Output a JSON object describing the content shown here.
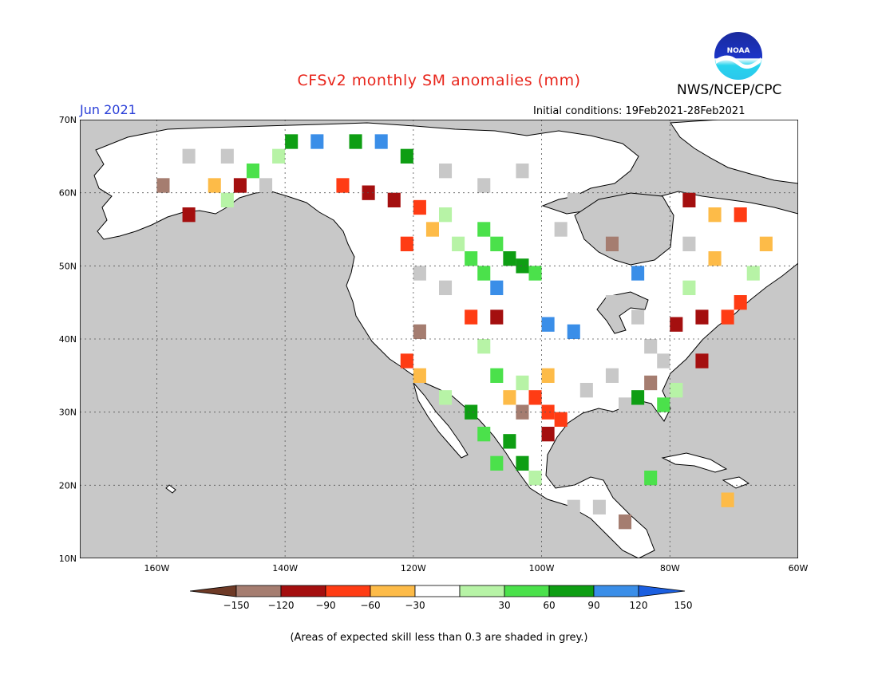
{
  "header": {
    "title": "CFSv2 monthly SM anomalies (mm)",
    "organization": "NWS/NCEP/CPC",
    "logo_icon": "noaa-logo-icon",
    "logo_text": "NOAA",
    "target_month": "Jun 2021",
    "initial_conditions": "Initial conditions: 19Feb2021-28Feb2021"
  },
  "map": {
    "lon_range": [
      -172,
      -60
    ],
    "lat_range": [
      10,
      70
    ],
    "lon_ticks": [
      {
        "value": -160,
        "label": "160W"
      },
      {
        "value": -140,
        "label": "140W"
      },
      {
        "value": -120,
        "label": "120W"
      },
      {
        "value": -100,
        "label": "100W"
      },
      {
        "value": -80,
        "label": "80W"
      },
      {
        "value": -60,
        "label": "60W"
      }
    ],
    "lat_ticks": [
      {
        "value": 70,
        "label": "70N"
      },
      {
        "value": 60,
        "label": "60N"
      },
      {
        "value": 50,
        "label": "50N"
      },
      {
        "value": 40,
        "label": "40N"
      },
      {
        "value": 30,
        "label": "30N"
      },
      {
        "value": 20,
        "label": "20N"
      },
      {
        "value": 10,
        "label": "10N"
      }
    ],
    "ocean_color": "#c8c8c8",
    "land_color": "#ffffff"
  },
  "legend": {
    "ticks": [
      "-150",
      "-120",
      "-90",
      "-60",
      "-30",
      "30",
      "60",
      "90",
      "120",
      "150"
    ],
    "colors": [
      "#6e3a26",
      "#a57d70",
      "#a40f0f",
      "#ff3c14",
      "#fdbb48",
      "#ffffff",
      "#b7f3a6",
      "#4be14b",
      "#0e9e13",
      "#3a8ee8",
      "#1c5fe0"
    ],
    "footnote": "(Areas of expected skill less than 0.3 are shaded in grey.)"
  },
  "anomaly_cells": [
    {
      "lon": -150,
      "lat": 60,
      "v": 40
    },
    {
      "lon": -152,
      "lat": 62,
      "v": -40
    },
    {
      "lon": -146,
      "lat": 64,
      "v": 70
    },
    {
      "lon": -142,
      "lat": 66,
      "v": 45
    },
    {
      "lon": -140,
      "lat": 68,
      "v": 100
    },
    {
      "lon": -156,
      "lat": 58,
      "v": -100
    },
    {
      "lon": -160,
      "lat": 62,
      "v": -140
    },
    {
      "lon": -148,
      "lat": 62,
      "v": -110
    },
    {
      "lon": -136,
      "lat": 68,
      "v": 130
    },
    {
      "lon": -130,
      "lat": 68,
      "v": 110
    },
    {
      "lon": -126,
      "lat": 68,
      "v": 140
    },
    {
      "lon": -122,
      "lat": 66,
      "v": 100
    },
    {
      "lon": -132,
      "lat": 62,
      "v": -70
    },
    {
      "lon": -128,
      "lat": 61,
      "v": -90
    },
    {
      "lon": -124,
      "lat": 60,
      "v": -100
    },
    {
      "lon": -120,
      "lat": 59,
      "v": -70
    },
    {
      "lon": -116,
      "lat": 58,
      "v": 40
    },
    {
      "lon": -110,
      "lat": 56,
      "v": 70
    },
    {
      "lon": -108,
      "lat": 54,
      "v": 80
    },
    {
      "lon": -106,
      "lat": 52,
      "v": 90
    },
    {
      "lon": -104,
      "lat": 51,
      "v": 100
    },
    {
      "lon": -110,
      "lat": 50,
      "v": 70
    },
    {
      "lon": -102,
      "lat": 50,
      "v": 60
    },
    {
      "lon": -108,
      "lat": 48,
      "v": 130
    },
    {
      "lon": -112,
      "lat": 52,
      "v": 80
    },
    {
      "lon": -114,
      "lat": 54,
      "v": 50
    },
    {
      "lon": -118,
      "lat": 56,
      "v": -40
    },
    {
      "lon": -122,
      "lat": 54,
      "v": -60
    },
    {
      "lon": -120,
      "lat": 42,
      "v": -130
    },
    {
      "lon": -122,
      "lat": 38,
      "v": -70
    },
    {
      "lon": -120,
      "lat": 36,
      "v": -40
    },
    {
      "lon": -116,
      "lat": 33,
      "v": 50
    },
    {
      "lon": -112,
      "lat": 31,
      "v": 90
    },
    {
      "lon": -110,
      "lat": 28,
      "v": 70
    },
    {
      "lon": -106,
      "lat": 27,
      "v": 100
    },
    {
      "lon": -104,
      "lat": 31,
      "v": -130
    },
    {
      "lon": -102,
      "lat": 33,
      "v": -60
    },
    {
      "lon": -100,
      "lat": 31,
      "v": -70
    },
    {
      "lon": -98,
      "lat": 30,
      "v": -80
    },
    {
      "lon": -100,
      "lat": 36,
      "v": -40
    },
    {
      "lon": -104,
      "lat": 35,
      "v": 40
    },
    {
      "lon": -106,
      "lat": 33,
      "v": -40
    },
    {
      "lon": -108,
      "lat": 36,
      "v": 60
    },
    {
      "lon": -110,
      "lat": 40,
      "v": 40
    },
    {
      "lon": -112,
      "lat": 44,
      "v": -60
    },
    {
      "lon": -108,
      "lat": 44,
      "v": -90
    },
    {
      "lon": -100,
      "lat": 43,
      "v": 140
    },
    {
      "lon": -96,
      "lat": 42,
      "v": 130
    },
    {
      "lon": -100,
      "lat": 28,
      "v": -110
    },
    {
      "lon": -104,
      "lat": 24,
      "v": 100
    },
    {
      "lon": -102,
      "lat": 22,
      "v": 50
    },
    {
      "lon": -108,
      "lat": 24,
      "v": 60
    },
    {
      "lon": -86,
      "lat": 33,
      "v": 110
    },
    {
      "lon": -82,
      "lat": 32,
      "v": 60
    },
    {
      "lon": -80,
      "lat": 34,
      "v": 40
    },
    {
      "lon": -84,
      "lat": 35,
      "v": -140
    },
    {
      "lon": -80,
      "lat": 43,
      "v": -110
    },
    {
      "lon": -76,
      "lat": 44,
      "v": -100
    },
    {
      "lon": -72,
      "lat": 44,
      "v": -80
    },
    {
      "lon": -70,
      "lat": 46,
      "v": -60
    },
    {
      "lon": -76,
      "lat": 38,
      "v": -100
    },
    {
      "lon": -78,
      "lat": 48,
      "v": 40
    },
    {
      "lon": -74,
      "lat": 52,
      "v": -40
    },
    {
      "lon": -78,
      "lat": 60,
      "v": -110
    },
    {
      "lon": -74,
      "lat": 58,
      "v": -50
    },
    {
      "lon": -70,
      "lat": 58,
      "v": -80
    },
    {
      "lon": -66,
      "lat": 54,
      "v": -40
    },
    {
      "lon": -68,
      "lat": 50,
      "v": 40
    },
    {
      "lon": -90,
      "lat": 54,
      "v": -140
    },
    {
      "lon": -86,
      "lat": 50,
      "v": 130
    },
    {
      "lon": -84,
      "lat": 22,
      "v": 60
    },
    {
      "lon": -88,
      "lat": 16,
      "v": -140
    },
    {
      "lon": -72,
      "lat": 19,
      "v": -40
    }
  ],
  "grey_cells": [
    {
      "lon": -156,
      "lat": 66
    },
    {
      "lon": -150,
      "lat": 66
    },
    {
      "lon": -144,
      "lat": 62
    },
    {
      "lon": -120,
      "lat": 50
    },
    {
      "lon": -116,
      "lat": 48
    },
    {
      "lon": -96,
      "lat": 60
    },
    {
      "lon": -92,
      "lat": 58
    },
    {
      "lon": -98,
      "lat": 56
    },
    {
      "lon": -90,
      "lat": 46
    },
    {
      "lon": -86,
      "lat": 44
    },
    {
      "lon": -84,
      "lat": 40
    },
    {
      "lon": -82,
      "lat": 38
    },
    {
      "lon": -90,
      "lat": 36
    },
    {
      "lon": -94,
      "lat": 34
    },
    {
      "lon": -88,
      "lat": 32
    },
    {
      "lon": -78,
      "lat": 54
    },
    {
      "lon": -82,
      "lat": 56
    },
    {
      "lon": -104,
      "lat": 64
    },
    {
      "lon": -110,
      "lat": 62
    },
    {
      "lon": -116,
      "lat": 64
    },
    {
      "lon": -122,
      "lat": 30
    },
    {
      "lon": -96,
      "lat": 18
    },
    {
      "lon": -92,
      "lat": 18
    }
  ]
}
